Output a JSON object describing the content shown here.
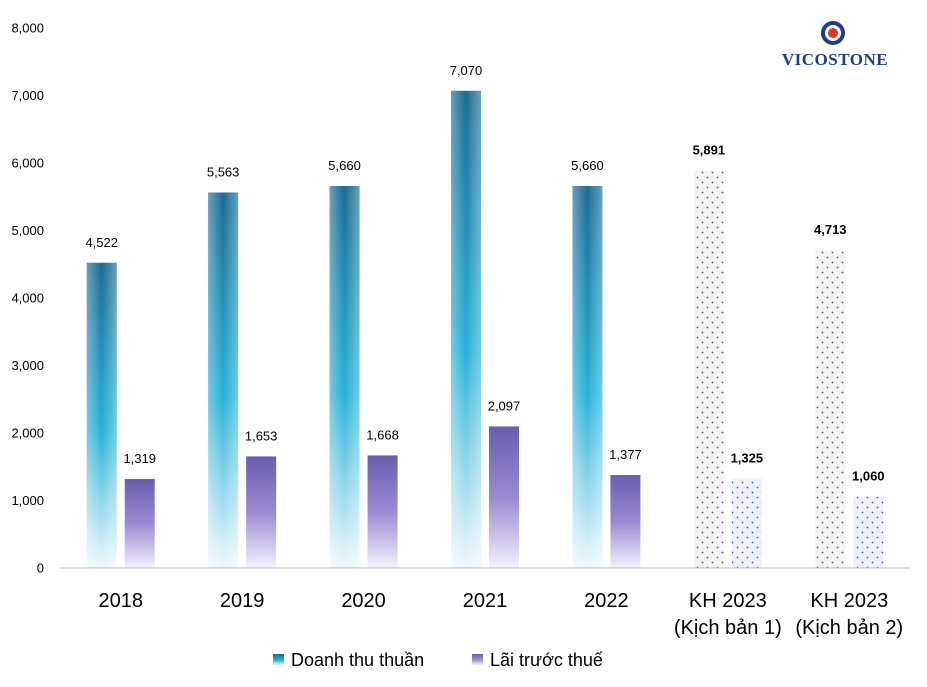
{
  "logo": {
    "text": "VICOSTONE",
    "ring_color": "#1f3b8c",
    "accent_color": "#e53323"
  },
  "chart_data": {
    "type": "bar",
    "categories": [
      [
        "2018"
      ],
      [
        "2019"
      ],
      [
        "2020"
      ],
      [
        "2021"
      ],
      [
        "2022"
      ],
      [
        "KH 2023",
        "(Kịch bản 1)"
      ],
      [
        "KH 2023",
        "(Kịch bản 2)"
      ]
    ],
    "series": [
      {
        "name": "Doanh thu thuần",
        "values": [
          4522,
          5563,
          5660,
          7070,
          5660,
          5891,
          4713
        ],
        "labels": [
          "4,522",
          "5,563",
          "5,660",
          "7,070",
          "5,660",
          "5,891",
          "4,713"
        ],
        "color_top": "#1a6b92",
        "color_mid": "#27b2d8",
        "color_bottom": "#f0f8fb"
      },
      {
        "name": "Lãi trước thuế",
        "values": [
          1319,
          1653,
          1668,
          2097,
          1377,
          1325,
          1060
        ],
        "labels": [
          "1,319",
          "1,653",
          "1,668",
          "2,097",
          "1,377",
          "1,325",
          "1,060"
        ],
        "color_top": "#6a5db0",
        "color_mid": "#9a8ad2",
        "color_bottom": "#f3f1fb"
      }
    ],
    "planned_categories": [
      5,
      6
    ],
    "yticks": [
      "0",
      "1,000",
      "2,000",
      "3,000",
      "4,000",
      "5,000",
      "6,000",
      "7,000",
      "8,000"
    ],
    "ylim": [
      0,
      8000
    ],
    "grid": false,
    "legend_position": "bottom-center"
  }
}
